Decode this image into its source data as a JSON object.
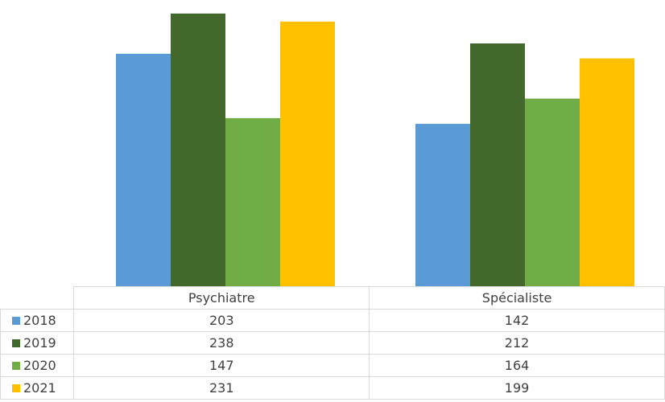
{
  "chart_data": {
    "type": "bar",
    "categories": [
      "Psychiatre",
      "Spécialiste"
    ],
    "series": [
      {
        "name": "2018",
        "color": "#5b9bd5",
        "values": [
          203,
          142
        ]
      },
      {
        "name": "2019",
        "color": "#43682b",
        "values": [
          238,
          212
        ]
      },
      {
        "name": "2020",
        "color": "#70ad47",
        "values": [
          147,
          164
        ]
      },
      {
        "name": "2021",
        "color": "#ffc000",
        "values": [
          231,
          199
        ]
      }
    ],
    "ylim": [
      0,
      240
    ],
    "grid": false,
    "legend": "data table below chart"
  }
}
